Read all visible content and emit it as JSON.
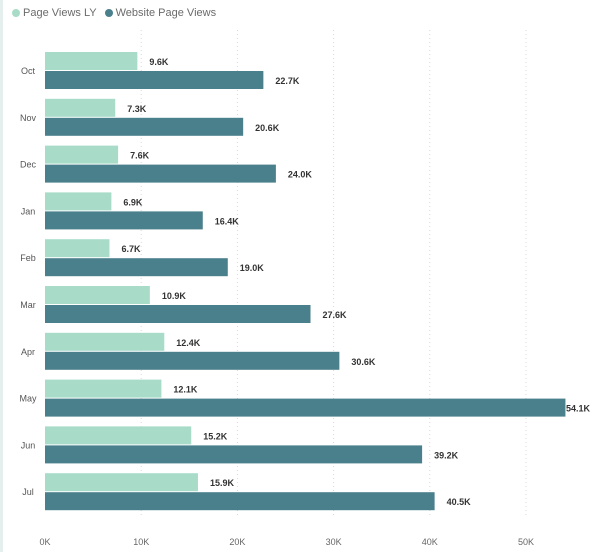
{
  "legend": [
    {
      "label": "Page Views LY",
      "color": "#a8dcc9"
    },
    {
      "label": "Website Page Views",
      "color": "#4a7f8c"
    }
  ],
  "chart_data": {
    "type": "bar",
    "orientation": "horizontal",
    "categories": [
      "Oct",
      "Nov",
      "Dec",
      "Jan",
      "Feb",
      "Mar",
      "Apr",
      "May",
      "Jun",
      "Jul"
    ],
    "series": [
      {
        "name": "Page Views LY",
        "color": "#a8dcc9",
        "values": [
          9.6,
          7.3,
          7.6,
          6.9,
          6.7,
          10.9,
          12.4,
          12.1,
          15.2,
          15.9
        ],
        "labels": [
          "9.6K",
          "7.3K",
          "7.6K",
          "6.9K",
          "6.7K",
          "10.9K",
          "12.4K",
          "12.1K",
          "15.2K",
          "15.9K"
        ]
      },
      {
        "name": "Website Page Views",
        "color": "#4a7f8c",
        "values": [
          22.7,
          20.6,
          24.0,
          16.4,
          19.0,
          27.6,
          30.6,
          54.1,
          39.2,
          40.5
        ],
        "labels": [
          "22.7K",
          "20.6K",
          "24.0K",
          "16.4K",
          "19.0K",
          "27.6K",
          "30.6K",
          "54.1K",
          "39.2K",
          "40.5K"
        ]
      }
    ],
    "xticks": [
      0,
      10,
      20,
      30,
      40,
      50
    ],
    "xtick_labels": [
      "0K",
      "10K",
      "20K",
      "30K",
      "40K",
      "50K"
    ],
    "xlim": [
      0,
      55
    ],
    "grid": true,
    "legend_position": "top-left",
    "title": "",
    "xlabel": "",
    "ylabel": ""
  }
}
